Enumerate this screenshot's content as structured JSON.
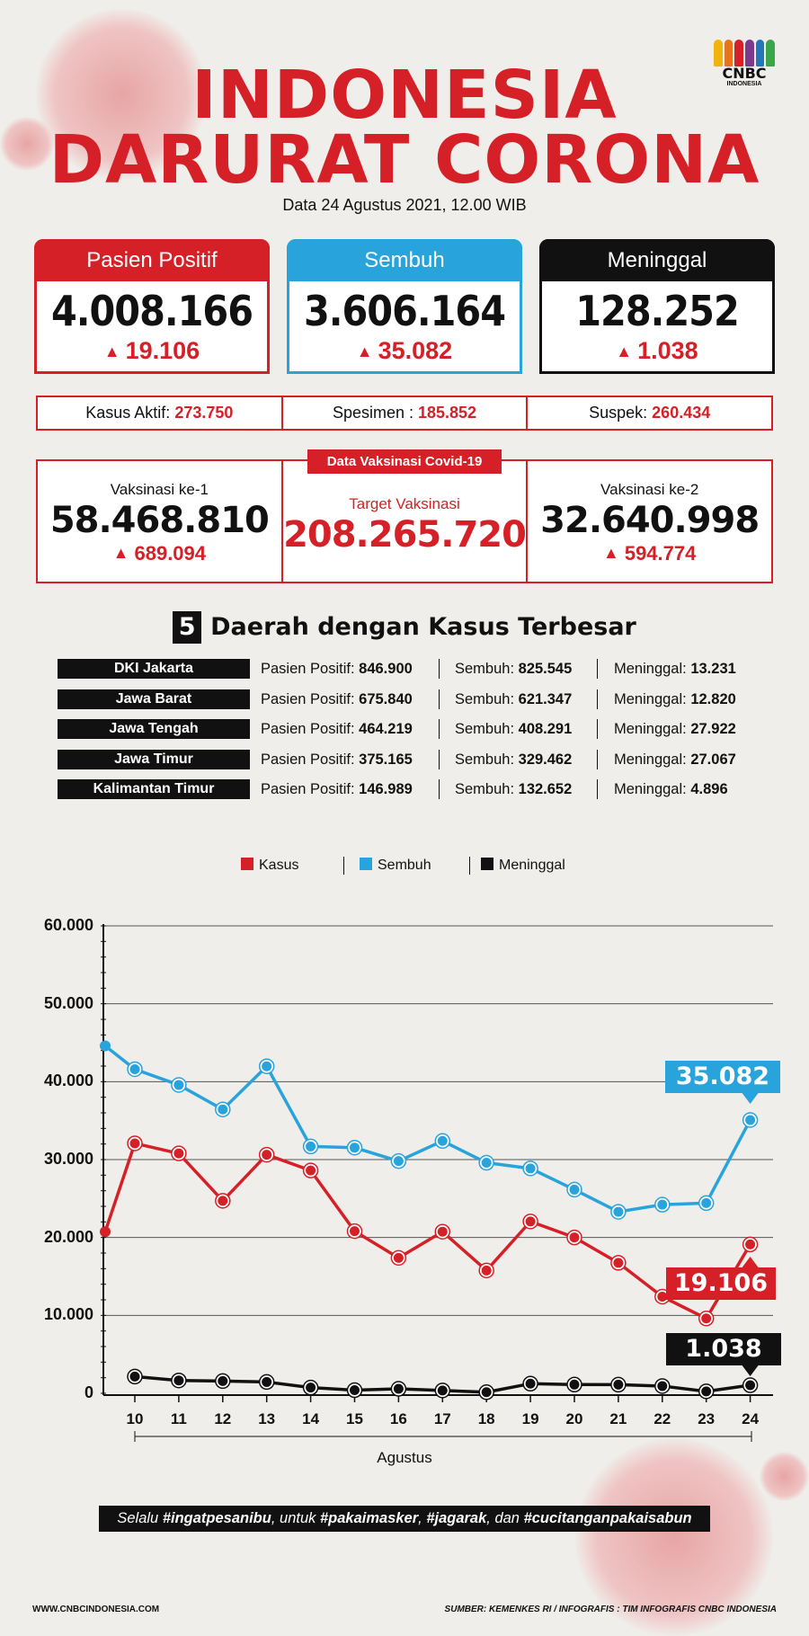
{
  "header": {
    "title_line1": "INDONESIA",
    "title_line2": "DARURAT CORONA",
    "date": "Data 24 Agustus 2021, 12.00 WIB",
    "logo_text": "CNBC",
    "logo_sub": "INDONESIA",
    "logo_colors": [
      "#f1b30d",
      "#e8731d",
      "#d52027",
      "#7a3b8f",
      "#2277b8",
      "#39a64a"
    ]
  },
  "cards": {
    "positif": {
      "label": "Pasien Positif",
      "value": "4.008.166",
      "delta": "19.106"
    },
    "sembuh": {
      "label": "Sembuh",
      "value": "3.606.164",
      "delta": "35.082"
    },
    "meninggal": {
      "label": "Meninggal",
      "value": "128.252",
      "delta": "1.038"
    }
  },
  "strip": {
    "aktif_label": "Kasus Aktif:",
    "aktif_value": "273.750",
    "spesimen_label": "Spesimen :",
    "spesimen_value": "185.852",
    "suspek_label": "Suspek:",
    "suspek_value": "260.434"
  },
  "vaksinasi": {
    "tag": "Data Vaksinasi Covid-19",
    "dose1_label": "Vaksinasi ke-1",
    "dose1_value": "58.468.810",
    "dose1_delta": "689.094",
    "target_label": "Target Vaksinasi",
    "target_value": "208.265.720",
    "dose2_label": "Vaksinasi ke-2",
    "dose2_value": "32.640.998",
    "dose2_delta": "594.774"
  },
  "regions": {
    "number": "5",
    "title": "Daerah dengan Kasus Terbesar",
    "positif_label": "Pasien Positif:",
    "sembuh_label": "Sembuh:",
    "meninggal_label": "Meninggal:",
    "rows": [
      {
        "name": "DKI Jakarta",
        "positif": "846.900",
        "sembuh": "825.545",
        "meninggal": "13.231"
      },
      {
        "name": "Jawa Barat",
        "positif": "675.840",
        "sembuh": "621.347",
        "meninggal": "12.820"
      },
      {
        "name": "Jawa Tengah",
        "positif": "464.219",
        "sembuh": "408.291",
        "meninggal": "27.922"
      },
      {
        "name": "Jawa Timur",
        "positif": "375.165",
        "sembuh": "329.462",
        "meninggal": "27.067"
      },
      {
        "name": "Kalimantan Timur",
        "positif": "146.989",
        "sembuh": "132.652",
        "meninggal": "4.896"
      }
    ]
  },
  "chart_data": {
    "type": "line",
    "x": [
      "10",
      "11",
      "12",
      "13",
      "14",
      "15",
      "16",
      "17",
      "18",
      "19",
      "20",
      "21",
      "22",
      "23",
      "24"
    ],
    "xlabel": "Agustus",
    "ylabel": "",
    "ylim": [
      0,
      60000
    ],
    "yticks": [
      0,
      10000,
      20000,
      30000,
      40000,
      50000,
      60000
    ],
    "ytick_labels": [
      "0",
      "10.000",
      "20.000",
      "30.000",
      "40.000",
      "50.000",
      "60.000"
    ],
    "grid": true,
    "legend_position": "top-center",
    "series": [
      {
        "name": "Kasus",
        "color": "#d52027",
        "start_value": 20741,
        "values": [
          32081,
          30788,
          24709,
          30625,
          28598,
          20813,
          17384,
          20741,
          15768,
          22053,
          20004,
          16744,
          12408,
          9604,
          19106
        ],
        "callout": "19.106"
      },
      {
        "name": "Sembuh",
        "color": "#29a3dc",
        "start_value": 44590,
        "values": [
          41599,
          39584,
          36434,
          41974,
          31687,
          31535,
          29807,
          32389,
          29594,
          28866,
          26142,
          23299,
          24216,
          24417,
          35082
        ],
        "callout": "35.082"
      },
      {
        "name": "Meninggal",
        "color": "#111111",
        "start_value": null,
        "values": [
          2147,
          1650,
          1569,
          1451,
          733,
          400,
          574,
          361,
          143,
          1236,
          1118,
          1105,
          929,
          247,
          1038
        ],
        "callout": "1.038"
      }
    ]
  },
  "banner": {
    "p1": "Selalu ",
    "h1": "#ingatpesanibu",
    "p2": ", untuk ",
    "h2": "#pakaimasker",
    "p3": ", ",
    "h3": "#jagarak",
    "p4": ", dan ",
    "h4": "#cucitanganpakaisabun"
  },
  "footer": {
    "site": "WWW.CNBCINDONESIA.COM",
    "source": "SUMBER: KEMENKES RI / INFOGRAFIS : TIM INFOGRAFIS CNBC INDONESIA"
  }
}
